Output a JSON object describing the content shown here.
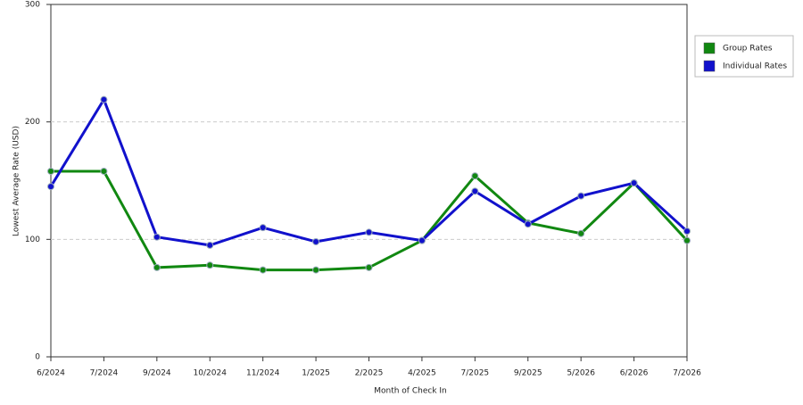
{
  "chart_data": {
    "type": "line",
    "x_label": "Month of Check In",
    "y_label": "Lowest Average Rate (USD)",
    "categories": [
      "6/2024",
      "7/2024",
      "9/2024",
      "10/2024",
      "11/2024",
      "1/2025",
      "2/2025",
      "4/2025",
      "7/2025",
      "9/2025",
      "5/2026",
      "6/2026",
      "7/2026"
    ],
    "series": [
      {
        "name": "Group Rates",
        "color": "#118811",
        "values": [
          158,
          158,
          76,
          78,
          74,
          74,
          76,
          99,
          154,
          114,
          105,
          148,
          99
        ]
      },
      {
        "name": "Individual Rates",
        "color": "#1111cc",
        "values": [
          145,
          219,
          102,
          95,
          110,
          98,
          106,
          99,
          141,
          113,
          137,
          148,
          107
        ]
      }
    ],
    "ylim": [
      0,
      300
    ],
    "yticks": [
      0,
      100,
      200,
      300
    ],
    "grid": true,
    "legend": "right"
  }
}
